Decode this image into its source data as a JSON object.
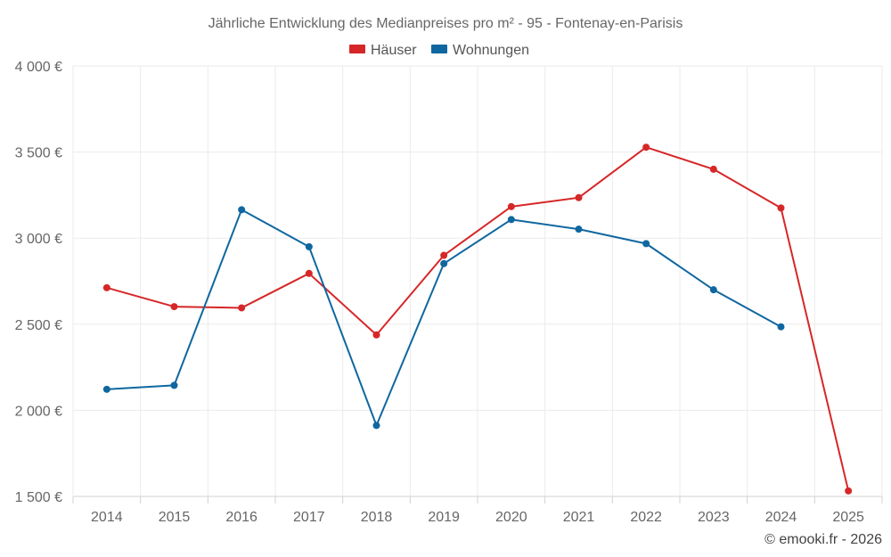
{
  "chart_data": {
    "type": "line",
    "title": "Jährliche Entwicklung des Medianpreises pro m² - 95 - Fontenay-en-Parisis",
    "categories": [
      "2014",
      "2015",
      "2016",
      "2017",
      "2018",
      "2019",
      "2020",
      "2021",
      "2022",
      "2023",
      "2024",
      "2025"
    ],
    "series": [
      {
        "name": "Häuser",
        "color": "#d62728",
        "values": [
          2712,
          2602,
          2595,
          2795,
          2438,
          2900,
          3183,
          3235,
          3528,
          3400,
          3175,
          1532
        ]
      },
      {
        "name": "Wohnungen",
        "color": "#0f67a0",
        "values": [
          2122,
          2145,
          3165,
          2950,
          1912,
          2852,
          3108,
          3052,
          2968,
          2700,
          2485,
          null
        ]
      }
    ],
    "ylim": [
      1500,
      4000
    ],
    "y_ticks": [
      1500,
      2000,
      2500,
      3000,
      3500,
      4000
    ],
    "y_tick_labels": [
      "1 500 €",
      "2 000 €",
      "2 500 €",
      "3 000 €",
      "3 500 €",
      "4 000 €"
    ],
    "legend_position": "top-center",
    "grid": true
  },
  "credit": "© emooki.fr - 2026"
}
